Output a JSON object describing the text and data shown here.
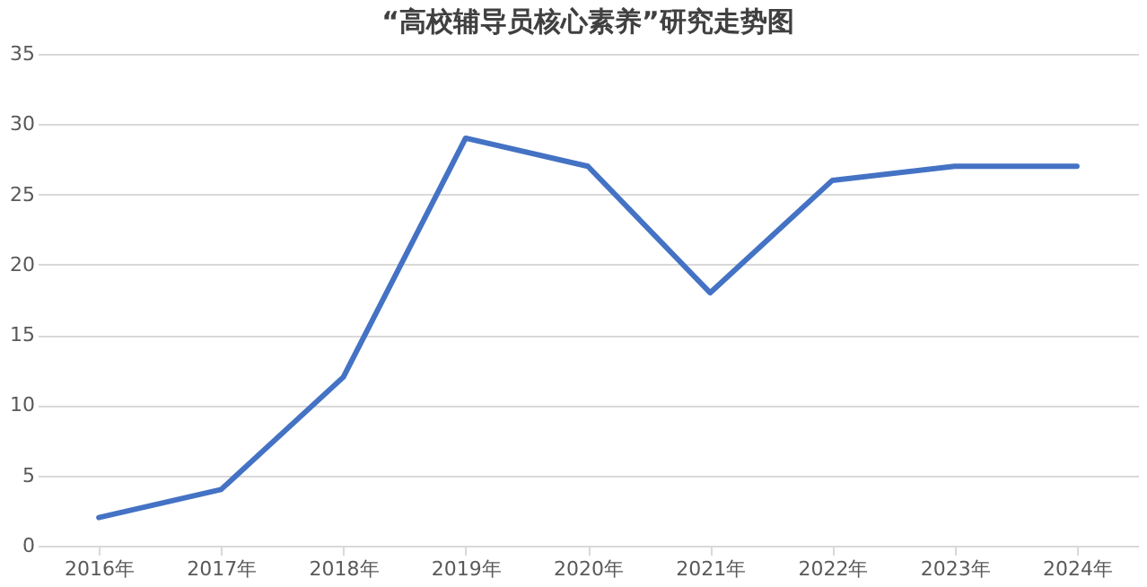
{
  "chart_data": {
    "type": "line",
    "title": "“高校辅导员核心素养”研究走势图",
    "categories": [
      "2016年",
      "2017年",
      "2018年",
      "2019年",
      "2020年",
      "2021年",
      "2022年",
      "2023年",
      "2024年"
    ],
    "series": [
      {
        "color": "#4472c4",
        "values": [
          2,
          4,
          12,
          29,
          27,
          18,
          26,
          27,
          27
        ]
      }
    ],
    "ylim": [
      0,
      35
    ],
    "yticks": [
      0,
      5,
      10,
      15,
      20,
      25,
      30,
      35
    ],
    "grid": "y",
    "marker": "none",
    "line_style": "solid"
  }
}
